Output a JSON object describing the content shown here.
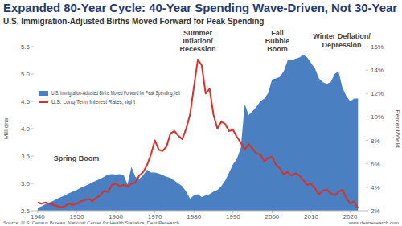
{
  "chart_data": {
    "type": "area",
    "title": "Expanded 80-Year Cycle: 40-Year Spending Wave-Driven, Not 30-Year",
    "subtitle": "U.S. Immigration-Adjusted Births Moved Forward for Peak Spending",
    "y_label": "Millions",
    "y2_label": "Percent/Yield",
    "source": "Source: U.S. Census Bureau, National Center for Health Statistics, Dent Research",
    "credit": "www.dentresearch.com",
    "annotations": [
      {
        "lines": [
          "Spring Boom"
        ]
      },
      {
        "lines": [
          "Summer",
          "Inflation/",
          "Recession"
        ]
      },
      {
        "lines": [
          "Fall",
          "Bubble",
          "Boom"
        ]
      },
      {
        "lines": [
          "Winter Deflation/",
          "Depression"
        ]
      }
    ],
    "x": [
      1940,
      1941,
      1942,
      1943,
      1944,
      1945,
      1946,
      1947,
      1948,
      1949,
      1950,
      1951,
      1952,
      1953,
      1954,
      1955,
      1956,
      1957,
      1958,
      1959,
      1960,
      1961,
      1962,
      1963,
      1964,
      1965,
      1966,
      1967,
      1968,
      1969,
      1970,
      1971,
      1972,
      1973,
      1974,
      1975,
      1976,
      1977,
      1978,
      1979,
      1980,
      1981,
      1982,
      1983,
      1984,
      1985,
      1986,
      1987,
      1988,
      1989,
      1990,
      1991,
      1992,
      1993,
      1994,
      1995,
      1996,
      1997,
      1998,
      1999,
      2000,
      2001,
      2002,
      2003,
      2004,
      2005,
      2006,
      2007,
      2008,
      2009,
      2010,
      2011,
      2012,
      2013,
      2014,
      2015,
      2016,
      2017,
      2018,
      2019,
      2020,
      2021,
      2022
    ],
    "series": [
      {
        "name": "U.S. Immigration-Adjusted Births Moved Forward for Peak Spending, left",
        "type": "area",
        "color": "#4a7fc1",
        "values": [
          2.55,
          2.58,
          2.62,
          2.65,
          2.68,
          2.72,
          2.75,
          2.78,
          2.82,
          2.85,
          2.88,
          2.92,
          2.95,
          2.98,
          3.02,
          3.05,
          3.08,
          3.12,
          3.16,
          3.17,
          3.16,
          3.17,
          3.15,
          2.98,
          3.3,
          3.12,
          3.08,
          3.15,
          3.25,
          3.2,
          3.2,
          3.18,
          3.15,
          3.12,
          3.1,
          3.05,
          3.0,
          2.95,
          2.85,
          2.72,
          2.78,
          2.8,
          2.75,
          2.78,
          2.8,
          2.85,
          2.88,
          2.95,
          3.05,
          3.2,
          3.35,
          3.45,
          3.65,
          4.45,
          4.25,
          4.32,
          4.4,
          4.5,
          4.55,
          4.65,
          4.9,
          4.92,
          4.95,
          5.05,
          5.25,
          5.25,
          5.28,
          5.3,
          5.35,
          5.3,
          5.2,
          5.1,
          4.92,
          4.85,
          4.82,
          4.85,
          5.0,
          5.05,
          4.75,
          4.6,
          4.5,
          4.55,
          4.55
        ]
      },
      {
        "name": "U.S. Long-Term Interest Rates, right",
        "type": "line",
        "axis": "y2",
        "color": "#d6322b",
        "line_style": "solid",
        "values": [
          2.7,
          2.6,
          2.7,
          2.6,
          2.5,
          2.4,
          2.3,
          2.4,
          2.6,
          2.5,
          2.6,
          2.8,
          2.9,
          3.0,
          2.8,
          3.1,
          3.3,
          3.7,
          3.6,
          4.2,
          4.3,
          4.1,
          4.2,
          4.1,
          4.3,
          4.4,
          5.0,
          5.3,
          5.9,
          6.8,
          8.0,
          7.2,
          7.1,
          7.5,
          8.6,
          8.8,
          8.4,
          8.1,
          9.0,
          10.2,
          12.6,
          14.9,
          14.4,
          12.0,
          12.4,
          10.2,
          9.0,
          9.6,
          9.4,
          8.8,
          8.9,
          8.3,
          7.8,
          7.2,
          7.7,
          7.3,
          6.9,
          6.8,
          6.2,
          6.5,
          6.6,
          5.9,
          5.6,
          5.1,
          5.3,
          5.0,
          5.2,
          5.0,
          4.6,
          4.2,
          4.3,
          3.9,
          3.4,
          3.7,
          3.8,
          3.5,
          3.3,
          3.6,
          3.8,
          3.1,
          2.6,
          2.8,
          2.2
        ]
      }
    ],
    "xlim": [
      1939,
      2024
    ],
    "xticks": [
      1940,
      1950,
      1960,
      1970,
      1980,
      1990,
      2000,
      2010,
      2020
    ],
    "ylim": [
      2.5,
      5.5
    ],
    "yticks": [
      2.5,
      {
        "value": 3,
        "label": "3.0"
      },
      3.5,
      {
        "value": 4,
        "label": "4.0"
      },
      4.5,
      {
        "value": 5,
        "label": "5.0"
      },
      5.5
    ],
    "y2lim": [
      2,
      16
    ],
    "y2ticks": [
      {
        "value": 2,
        "label": "2%"
      },
      {
        "value": 4,
        "label": "4%"
      },
      {
        "value": 6,
        "label": "6%"
      },
      {
        "value": 8,
        "label": "8%"
      },
      {
        "value": 10,
        "label": "10%"
      },
      {
        "value": 12,
        "label": "12%"
      },
      {
        "value": 14,
        "label": "14%"
      },
      {
        "value": 16,
        "label": "16%"
      }
    ],
    "grid": false,
    "legend": "top-left"
  }
}
